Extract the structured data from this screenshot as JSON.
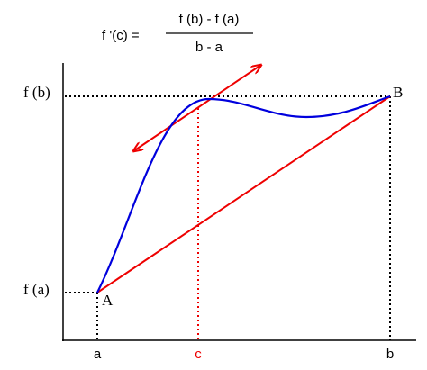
{
  "formula": {
    "lhs": "f '(c) =",
    "numerator": "f (b) - f (a)",
    "denominator": "b - a"
  },
  "y_labels": {
    "fb": "f (b)",
    "fa": "f (a)"
  },
  "points": {
    "A": "A",
    "B": "B"
  },
  "x_labels": {
    "a": "a",
    "c": "c",
    "b": "b"
  }
}
